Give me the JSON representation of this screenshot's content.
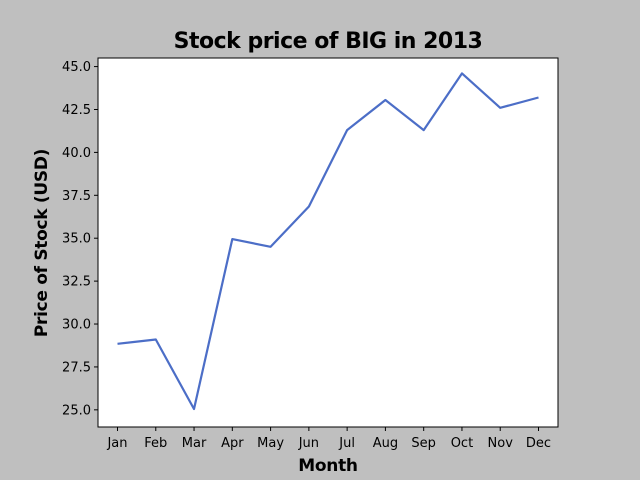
{
  "chart_data": {
    "type": "line",
    "title": "Stock price of BIG in 2013",
    "xlabel": "Month",
    "ylabel": "Price of Stock (USD)",
    "categories": [
      "Jan",
      "Feb",
      "Mar",
      "Apr",
      "May",
      "Jun",
      "Jul",
      "Aug",
      "Sep",
      "Oct",
      "Nov",
      "Dec"
    ],
    "series": [
      {
        "values": [
          28.85,
          29.1,
          25.05,
          34.95,
          34.5,
          36.85,
          41.3,
          43.05,
          41.3,
          44.6,
          42.6,
          43.2
        ]
      }
    ],
    "yticks": [
      "25.0",
      "27.5",
      "30.0",
      "32.5",
      "35.0",
      "37.5",
      "40.0",
      "42.5",
      "45.0"
    ],
    "ytick_values": [
      25.0,
      27.5,
      30.0,
      32.5,
      35.0,
      37.5,
      40.0,
      42.5,
      45.0
    ],
    "ylim": [
      24.0,
      45.5
    ],
    "grid": false,
    "line_color": "#4c6ec7",
    "background_color": "#bfbfbf",
    "plot_background_color": "#ffffff"
  }
}
